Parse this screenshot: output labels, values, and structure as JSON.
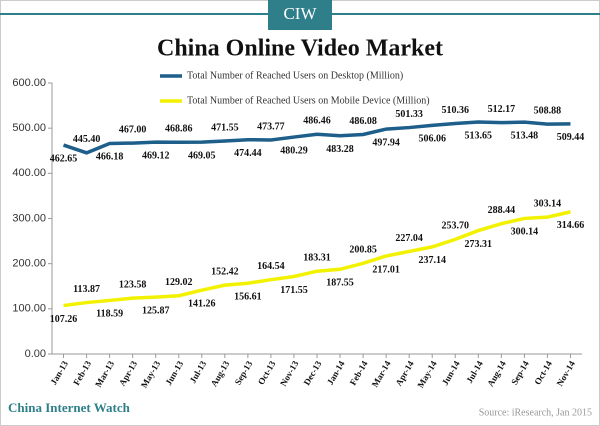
{
  "brand": "CIW",
  "chart_data": {
    "type": "line",
    "title": "China Online Video Market",
    "categories": [
      "Jan-13",
      "Feb-13",
      "Mar-13",
      "Apr-13",
      "May-13",
      "Jun-13",
      "Jul-13",
      "Aug-13",
      "Sep-13",
      "Oct-13",
      "Nov-13",
      "Dec-13",
      "Jan-14",
      "Feb-14",
      "Mar-14",
      "Apr-14",
      "May-14",
      "Jun-14",
      "Jul-14",
      "Aug-14",
      "Sep-14",
      "Oct-14",
      "Nov-14"
    ],
    "series": [
      {
        "name": "Total Number of Reached Users on Desktop (Million)",
        "color": "#1d5f8a",
        "values": [
          462.65,
          445.4,
          466.18,
          467.0,
          469.12,
          468.86,
          469.05,
          471.55,
          474.44,
          473.77,
          480.29,
          486.46,
          483.28,
          486.08,
          497.94,
          501.33,
          506.06,
          510.36,
          513.65,
          512.17,
          513.48,
          508.88,
          509.44
        ],
        "value_labels": [
          "462.65",
          "445.40",
          "466.18",
          "467.00",
          "469.12",
          "468.86",
          "469.05",
          "471.55",
          "474.44",
          "473.77",
          "480.29",
          "486.46",
          "483.28",
          "486.08",
          "497.94",
          "501.33",
          "506.06",
          "510.36",
          "513.65",
          "512.17",
          "513.48",
          "508.88",
          "509.44"
        ]
      },
      {
        "name": "Total Number of Reached Users on Mobile Device (Million)",
        "color": "#f2f200",
        "values": [
          107.26,
          113.87,
          118.59,
          123.58,
          125.87,
          129.02,
          141.26,
          152.42,
          156.61,
          164.54,
          171.55,
          183.31,
          187.55,
          200.85,
          217.01,
          227.04,
          237.14,
          253.7,
          273.31,
          288.44,
          300.14,
          303.14,
          314.66
        ],
        "value_labels": [
          "107.26",
          "113.87",
          "118.59",
          "123.58",
          "125.87",
          "129.02",
          "141.26",
          "152.42",
          "156.61",
          "164.54",
          "171.55",
          "183.31",
          "187.55",
          "200.85",
          "217.01",
          "227.04",
          "237.14",
          "253.70",
          "273.31",
          "288.44",
          "300.14",
          "303.14",
          "314.66"
        ]
      }
    ],
    "ylim": [
      0,
      600
    ],
    "yticks": [
      {
        "value": 0,
        "label": "0.00"
      },
      {
        "value": 100,
        "label": "100.00"
      },
      {
        "value": 200,
        "label": "200.00"
      },
      {
        "value": 300,
        "label": "300.00"
      },
      {
        "value": 400,
        "label": "400.00"
      },
      {
        "value": 500,
        "label": "500.00"
      },
      {
        "value": 600,
        "label": "600.00"
      }
    ],
    "grid": false
  },
  "footer": {
    "site": "China Internet Watch",
    "source": "Source: iResearch, Jan 2015"
  }
}
